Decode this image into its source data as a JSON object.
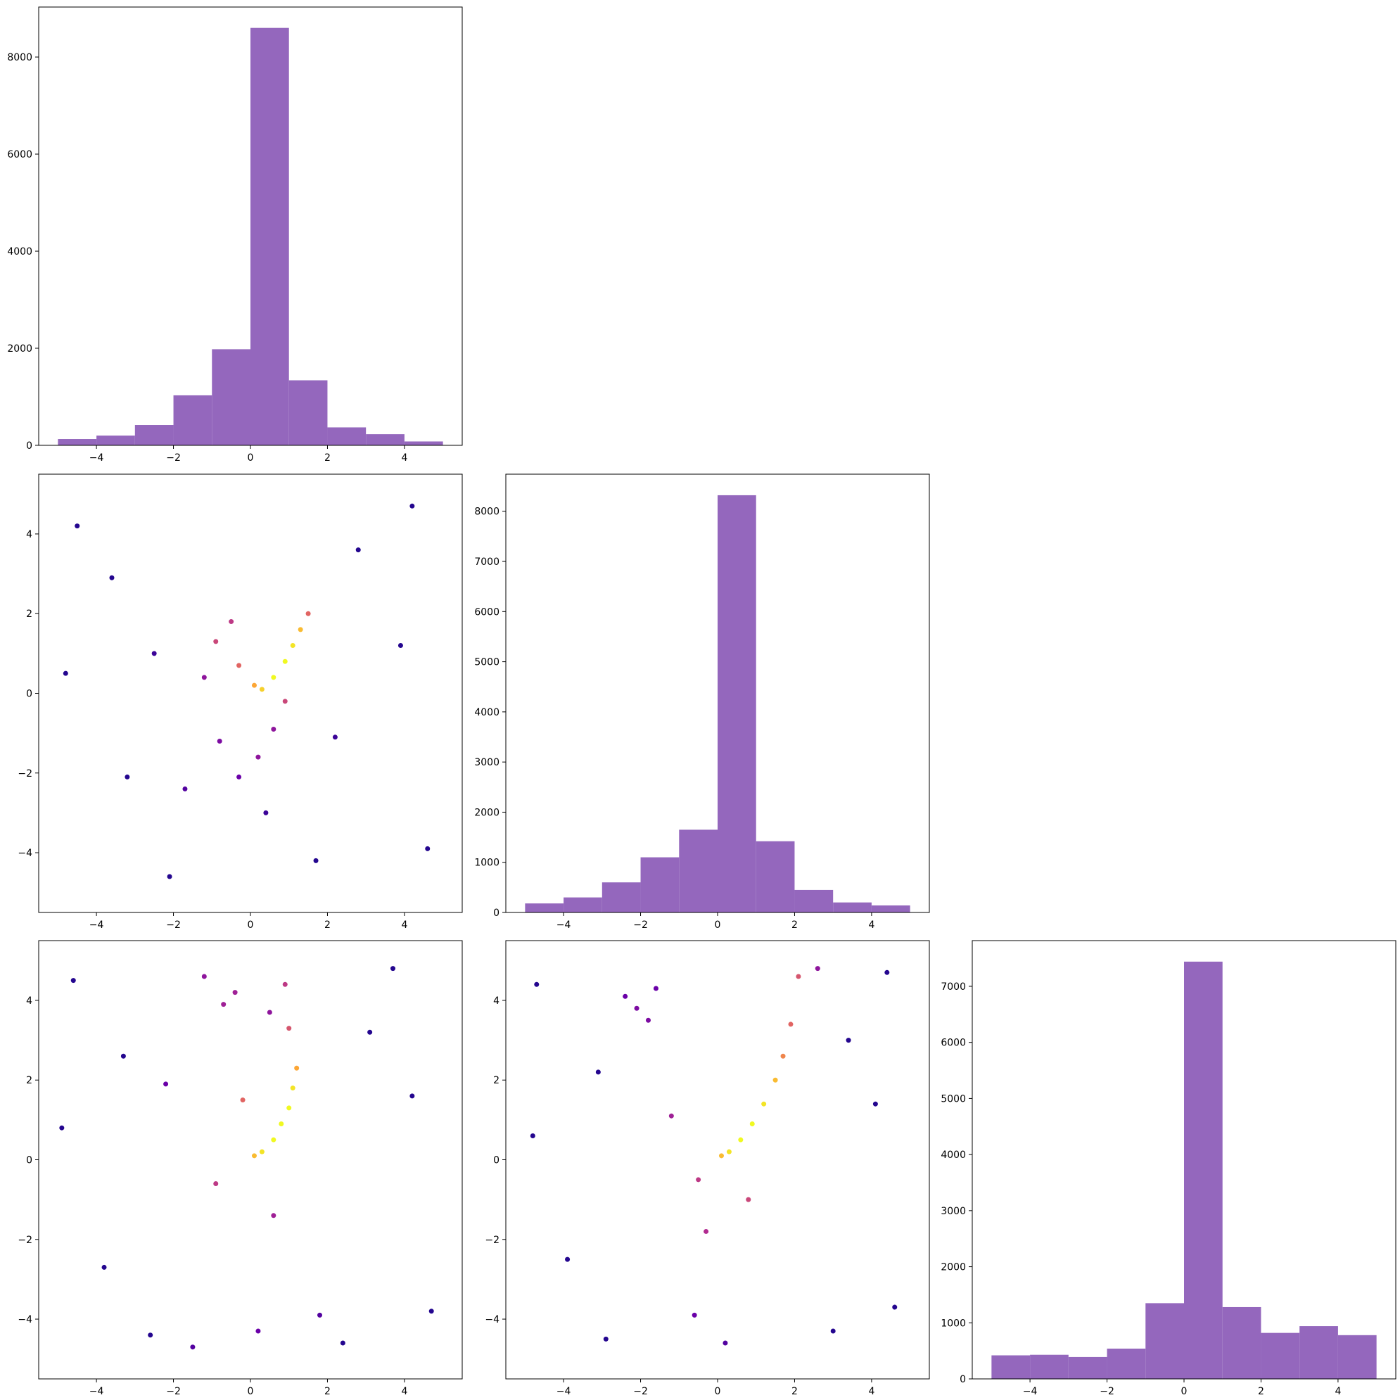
{
  "chart_data": [
    {
      "type": "histogram",
      "bins": [
        -5,
        -4,
        -3,
        -2,
        -1,
        0,
        1,
        2,
        3,
        4,
        5
      ],
      "values": [
        130,
        200,
        420,
        1030,
        1980,
        8600,
        1340,
        370,
        230,
        80
      ],
      "color": "#9467bd",
      "xlim": [
        -5.5,
        5.5
      ],
      "ylim": [
        0,
        9030
      ],
      "xticks": [
        {
          "value": -4,
          "label": "−4"
        },
        {
          "value": -2,
          "label": "−2"
        },
        0,
        2,
        4
      ],
      "yticks": [
        0,
        2000,
        4000,
        6000,
        8000
      ]
    },
    {
      "type": "scatter",
      "colormap": [
        "#0d0887",
        "#6a00a8",
        "#b12a90",
        "#e16462",
        "#fca636",
        "#f0f921"
      ],
      "x": [
        -4.5,
        -3.2,
        2.8,
        4.6,
        -4.8,
        3.9,
        -2.1,
        1.7,
        4.2,
        -3.6,
        -0.8,
        -0.3,
        0.6,
        -1.2,
        0.2,
        -0.5,
        -0.9,
        0.9,
        -0.3,
        0.1,
        0.3,
        0.6,
        0.9,
        1.1,
        1.3,
        1.5,
        -1.7,
        2.2,
        -2.5,
        0.4
      ],
      "y": [
        4.2,
        -2.1,
        3.6,
        -3.9,
        0.5,
        1.2,
        -4.6,
        -4.2,
        4.7,
        2.9,
        -1.2,
        -2.1,
        -0.9,
        0.4,
        -1.6,
        1.8,
        1.3,
        -0.2,
        0.7,
        0.2,
        0.1,
        0.4,
        0.8,
        1.2,
        1.6,
        2.0,
        -2.4,
        -1.1,
        1.0,
        -3.0
      ],
      "c": [
        0.05,
        0.05,
        0.05,
        0.05,
        0.05,
        0.05,
        0.05,
        0.05,
        0.05,
        0.05,
        0.25,
        0.2,
        0.3,
        0.3,
        0.3,
        0.45,
        0.5,
        0.5,
        0.6,
        0.8,
        0.9,
        1,
        1,
        0.95,
        0.85,
        0.6,
        0.15,
        0.1,
        0.1,
        0.1
      ],
      "xlim": [
        -5.5,
        5.5
      ],
      "ylim": [
        -5.5,
        5.5
      ],
      "xticks": [
        {
          "value": -4,
          "label": "−4"
        },
        {
          "value": -2,
          "label": "−2"
        },
        0,
        2,
        4
      ],
      "yticks": [
        {
          "value": -4,
          "label": "−4"
        },
        {
          "value": -2,
          "label": "−2"
        },
        0,
        2,
        4
      ]
    },
    {
      "type": "histogram",
      "bins": [
        -5,
        -4,
        -3,
        -2,
        -1,
        0,
        1,
        2,
        3,
        4,
        5
      ],
      "values": [
        180,
        300,
        600,
        1100,
        1650,
        8320,
        1420,
        450,
        200,
        140
      ],
      "color": "#9467bd",
      "xlim": [
        -5.5,
        5.5
      ],
      "ylim": [
        0,
        8740
      ],
      "xticks": [
        {
          "value": -4,
          "label": "−4"
        },
        {
          "value": -2,
          "label": "−2"
        },
        0,
        2,
        4
      ],
      "yticks": [
        0,
        1000,
        2000,
        3000,
        4000,
        5000,
        6000,
        7000,
        8000
      ]
    },
    {
      "type": "scatter",
      "colormap": [
        "#0d0887",
        "#6a00a8",
        "#b12a90",
        "#e16462",
        "#fca636",
        "#f0f921"
      ],
      "x": [
        -4.6,
        -3.8,
        3.1,
        4.7,
        -4.9,
        4.2,
        -2.6,
        2.4,
        3.7,
        -3.3,
        -1.2,
        -0.4,
        0.5,
        0.9,
        -0.7,
        -0.2,
        0.1,
        0.3,
        0.6,
        0.8,
        1.0,
        1.1,
        1.2,
        1.0,
        -0.9,
        0.2,
        -1.5,
        1.8,
        -2.2,
        0.6
      ],
      "y": [
        4.5,
        -2.7,
        3.2,
        -3.8,
        0.8,
        1.6,
        -4.4,
        -4.6,
        4.8,
        2.6,
        4.6,
        4.2,
        3.7,
        4.4,
        3.9,
        1.5,
        0.1,
        0.2,
        0.5,
        0.9,
        1.3,
        1.8,
        2.3,
        3.3,
        -0.6,
        -4.3,
        -4.7,
        -3.9,
        1.9,
        -1.4
      ],
      "c": [
        0.05,
        0.05,
        0.05,
        0.05,
        0.05,
        0.05,
        0.05,
        0.05,
        0.05,
        0.05,
        0.3,
        0.35,
        0.3,
        0.45,
        0.35,
        0.6,
        0.85,
        0.95,
        1,
        1,
        1,
        0.95,
        0.8,
        0.55,
        0.45,
        0.2,
        0.15,
        0.15,
        0.2,
        0.35
      ],
      "xlim": [
        -5.5,
        5.5
      ],
      "ylim": [
        -5.5,
        5.5
      ],
      "xticks": [
        {
          "value": -4,
          "label": "−4"
        },
        {
          "value": -2,
          "label": "−2"
        },
        0,
        2,
        4
      ],
      "yticks": [
        {
          "value": -4,
          "label": "−4"
        },
        {
          "value": -2,
          "label": "−2"
        },
        0,
        2,
        4
      ]
    },
    {
      "type": "scatter",
      "colormap": [
        "#0d0887",
        "#6a00a8",
        "#b12a90",
        "#e16462",
        "#fca636",
        "#f0f921"
      ],
      "x": [
        -4.7,
        -3.9,
        3.4,
        4.6,
        -4.8,
        4.1,
        -2.9,
        3.0,
        4.4,
        -3.1,
        -2.1,
        -1.8,
        -2.4,
        -1.6,
        -0.5,
        0.1,
        0.3,
        0.6,
        0.9,
        1.2,
        1.5,
        1.7,
        1.9,
        2.1,
        -0.6,
        0.2,
        -0.3,
        2.6,
        -1.2,
        0.8
      ],
      "y": [
        4.4,
        -2.5,
        3.0,
        -3.7,
        0.6,
        1.4,
        -4.5,
        -4.3,
        4.7,
        2.2,
        3.8,
        3.5,
        4.1,
        4.3,
        -0.5,
        0.1,
        0.2,
        0.5,
        0.9,
        1.4,
        2.0,
        2.6,
        3.4,
        4.6,
        -3.9,
        -4.6,
        -1.8,
        4.8,
        1.1,
        -1.0
      ],
      "c": [
        0.05,
        0.05,
        0.05,
        0.05,
        0.05,
        0.05,
        0.05,
        0.05,
        0.05,
        0.05,
        0.25,
        0.25,
        0.2,
        0.2,
        0.45,
        0.85,
        0.95,
        1,
        1,
        0.95,
        0.85,
        0.7,
        0.6,
        0.55,
        0.2,
        0.15,
        0.4,
        0.3,
        0.35,
        0.5
      ],
      "xlim": [
        -5.5,
        5.5
      ],
      "ylim": [
        -5.5,
        5.5
      ],
      "xticks": [
        {
          "value": -4,
          "label": "−4"
        },
        {
          "value": -2,
          "label": "−2"
        },
        0,
        2,
        4
      ],
      "yticks": [
        {
          "value": -4,
          "label": "−4"
        },
        {
          "value": -2,
          "label": "−2"
        },
        0,
        2,
        4
      ]
    },
    {
      "type": "histogram",
      "bins": [
        -5,
        -4,
        -3,
        -2,
        -1,
        0,
        1,
        2,
        3,
        4,
        5
      ],
      "values": [
        420,
        430,
        390,
        540,
        1350,
        7440,
        1280,
        820,
        940,
        780
      ],
      "color": "#9467bd",
      "xlim": [
        -5.5,
        5.5
      ],
      "ylim": [
        0,
        7815
      ],
      "xticks": [
        {
          "value": -4,
          "label": "−4"
        },
        {
          "value": -2,
          "label": "−2"
        },
        0,
        2,
        4
      ],
      "yticks": [
        0,
        1000,
        2000,
        3000,
        4000,
        5000,
        6000,
        7000
      ]
    }
  ]
}
